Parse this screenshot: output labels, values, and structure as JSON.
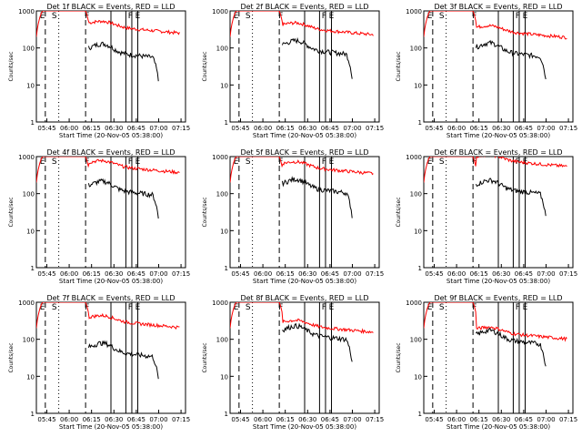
{
  "colors": {
    "events": "#000000",
    "lld": "#ff0000",
    "axes": "#000000",
    "background": "#ffffff"
  },
  "chart_data": [
    {
      "type": "line",
      "title": "Det 1f BLACK = Events, RED = LLD",
      "xlabel": "Start Time (20-Nov-05 05:38:00)",
      "ylabel": "Counts/sec",
      "y_scale": "log",
      "ylim": [
        1,
        1000
      ],
      "x_ticks": [
        "05:45",
        "06:00",
        "06:15",
        "06:30",
        "06:45",
        "07:00",
        "07:15"
      ],
      "y_ticks": [
        "1",
        "10",
        "100",
        "1000"
      ],
      "annotations": [
        "E",
        "S",
        "F",
        "F",
        "E"
      ],
      "series": [
        {
          "name": "BLACK = Events",
          "color": "#000000"
        },
        {
          "name": "RED = LLD",
          "color": "#ff0000"
        }
      ]
    },
    {
      "type": "line",
      "title": "Det 2f BLACK = Events, RED = LLD",
      "xlabel": "Start Time (20-Nov-05 05:38:00)",
      "ylabel": "Counts/sec",
      "y_scale": "log",
      "ylim": [
        1,
        1000
      ],
      "x_ticks": [
        "05:45",
        "06:00",
        "06:15",
        "06:30",
        "06:45",
        "07:00",
        "07:15"
      ],
      "y_ticks": [
        "1",
        "10",
        "100",
        "1000"
      ],
      "annotations": [
        "E",
        "S",
        "F",
        "F",
        "E"
      ],
      "series": [
        {
          "name": "BLACK = Events",
          "color": "#000000"
        },
        {
          "name": "RED = LLD",
          "color": "#ff0000"
        }
      ]
    },
    {
      "type": "line",
      "title": "Det 3f BLACK = Events, RED = LLD",
      "xlabel": "Start Time (20-Nov-05 05:38:00)",
      "ylabel": "Counts/sec",
      "y_scale": "log",
      "ylim": [
        1,
        1000
      ],
      "x_ticks": [
        "05:45",
        "06:00",
        "06:15",
        "06:30",
        "06:45",
        "07:00",
        "07:15"
      ],
      "y_ticks": [
        "1",
        "10",
        "100",
        "1000"
      ],
      "annotations": [
        "E",
        "S",
        "F",
        "F",
        "E"
      ],
      "series": [
        {
          "name": "BLACK = Events",
          "color": "#000000"
        },
        {
          "name": "RED = LLD",
          "color": "#ff0000"
        }
      ]
    },
    {
      "type": "line",
      "title": "Det 4f BLACK = Events, RED = LLD",
      "xlabel": "Start Time (20-Nov-05 05:38:00)",
      "ylabel": "Counts/sec",
      "y_scale": "log",
      "ylim": [
        1,
        1000
      ],
      "x_ticks": [
        "05:45",
        "06:00",
        "06:15",
        "06:30",
        "06:45",
        "07:00",
        "07:15"
      ],
      "y_ticks": [
        "1",
        "10",
        "100",
        "1000"
      ],
      "annotations": [
        "E",
        "S",
        "F",
        "F",
        "E"
      ],
      "series": [
        {
          "name": "BLACK = Events",
          "color": "#000000"
        },
        {
          "name": "RED = LLD",
          "color": "#ff0000"
        }
      ]
    },
    {
      "type": "line",
      "title": "Det 5f BLACK = Events, RED = LLD",
      "xlabel": "Start Time (20-Nov-05 05:38:00)",
      "ylabel": "Counts/sec",
      "y_scale": "log",
      "ylim": [
        1,
        1000
      ],
      "x_ticks": [
        "05:45",
        "06:00",
        "06:15",
        "06:30",
        "06:45",
        "07:00",
        "07:15"
      ],
      "y_ticks": [
        "1",
        "10",
        "100",
        "1000"
      ],
      "annotations": [
        "E",
        "S",
        "F",
        "F",
        "E"
      ],
      "series": [
        {
          "name": "BLACK = Events",
          "color": "#000000"
        },
        {
          "name": "RED = LLD",
          "color": "#ff0000"
        }
      ]
    },
    {
      "type": "line",
      "title": "Det 6f BLACK = Events, RED = LLD",
      "xlabel": "Start Time (20-Nov-05 05:38:00)",
      "ylabel": "Counts/sec",
      "y_scale": "log",
      "ylim": [
        1,
        1000
      ],
      "x_ticks": [
        "05:45",
        "06:00",
        "06:15",
        "06:30",
        "06:45",
        "07:00",
        "07:15"
      ],
      "y_ticks": [
        "1",
        "10",
        "100",
        "1000"
      ],
      "annotations": [
        "E",
        "S",
        "F",
        "F",
        "E"
      ],
      "series": [
        {
          "name": "BLACK = Events",
          "color": "#000000"
        },
        {
          "name": "RED = LLD",
          "color": "#ff0000"
        }
      ]
    },
    {
      "type": "line",
      "title": "Det 7f BLACK = Events, RED = LLD",
      "xlabel": "Start Time (20-Nov-05 05:38:00)",
      "ylabel": "Counts/sec",
      "y_scale": "log",
      "ylim": [
        1,
        1000
      ],
      "x_ticks": [
        "05:45",
        "06:00",
        "06:15",
        "06:30",
        "06:45",
        "07:00",
        "07:15"
      ],
      "y_ticks": [
        "1",
        "10",
        "100",
        "1000"
      ],
      "annotations": [
        "E",
        "S",
        "F",
        "F",
        "E"
      ],
      "series": [
        {
          "name": "BLACK = Events",
          "color": "#000000"
        },
        {
          "name": "RED = LLD",
          "color": "#ff0000"
        }
      ]
    },
    {
      "type": "line",
      "title": "Det 8f BLACK = Events, RED = LLD",
      "xlabel": "Start Time (20-Nov-05 05:38:00)",
      "ylabel": "Counts/sec",
      "y_scale": "log",
      "ylim": [
        1,
        1000
      ],
      "x_ticks": [
        "05:45",
        "06:00",
        "06:15",
        "06:30",
        "06:45",
        "07:00",
        "07:15"
      ],
      "y_ticks": [
        "1",
        "10",
        "100",
        "1000"
      ],
      "annotations": [
        "E",
        "S",
        "F",
        "F",
        "E"
      ],
      "series": [
        {
          "name": "BLACK = Events",
          "color": "#000000"
        },
        {
          "name": "RED = LLD",
          "color": "#ff0000"
        }
      ]
    },
    {
      "type": "line",
      "title": "Det 9f BLACK = Events, RED = LLD",
      "xlabel": "Start Time (20-Nov-05 05:38:00)",
      "ylabel": "Counts/sec",
      "y_scale": "log",
      "ylim": [
        1,
        1000
      ],
      "x_ticks": [
        "05:45",
        "06:00",
        "06:15",
        "06:30",
        "06:45",
        "07:00",
        "07:15"
      ],
      "y_ticks": [
        "1",
        "10",
        "100",
        "1000"
      ],
      "annotations": [
        "E",
        "S",
        "F",
        "F",
        "E"
      ],
      "series": [
        {
          "name": "BLACK = Events",
          "color": "#000000"
        },
        {
          "name": "RED = LLD",
          "color": "#ff0000"
        }
      ]
    }
  ]
}
